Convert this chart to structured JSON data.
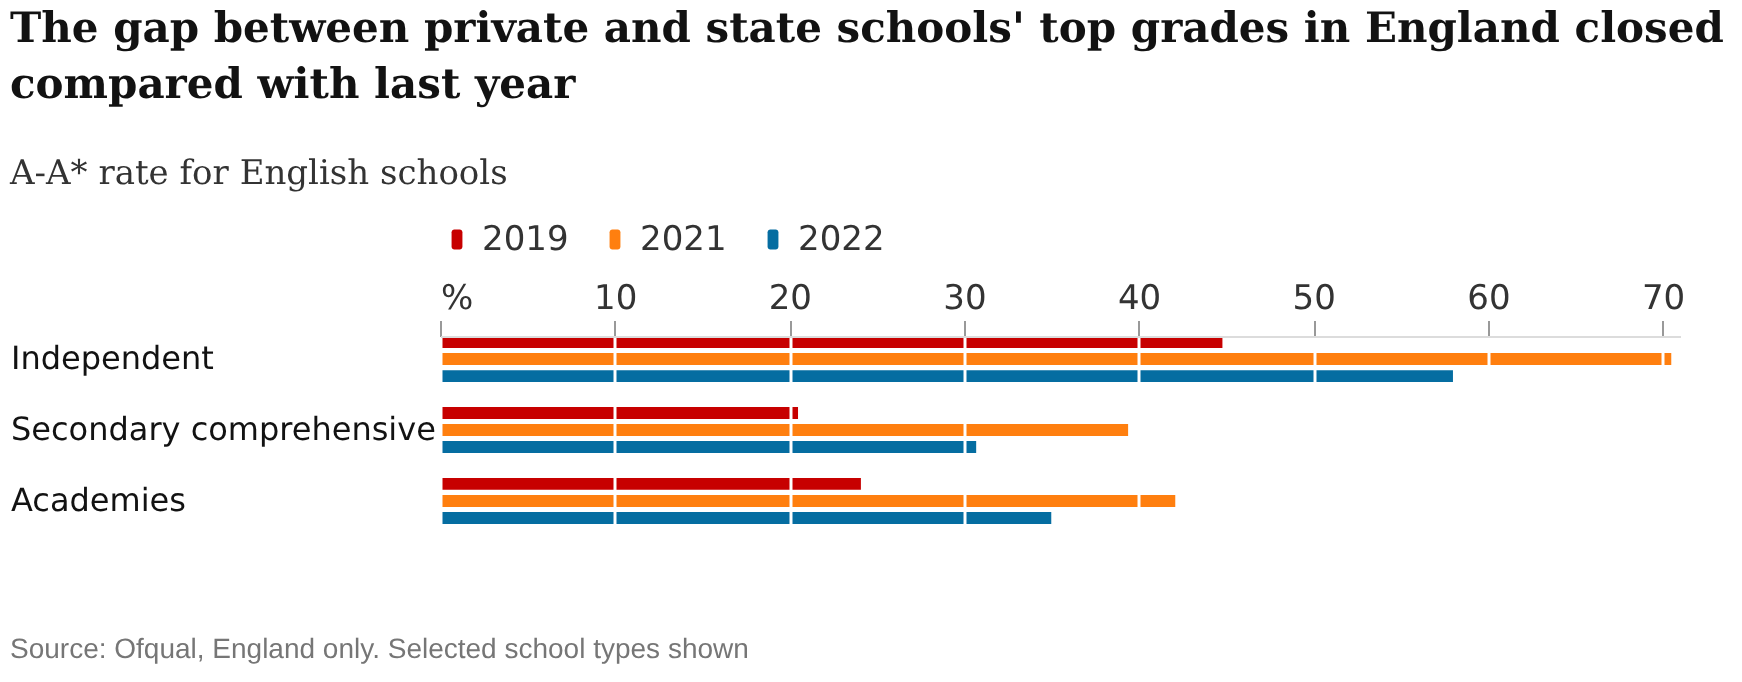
{
  "chart_data": {
    "type": "bar",
    "orientation": "horizontal",
    "title": "The gap between private and state schools' top grades in England closed compared with last year",
    "subtitle": "A-A* rate for English schools",
    "categories": [
      "Independent",
      "Secondary comprehensive",
      "Academies"
    ],
    "series": [
      {
        "name": "2019",
        "color": "#c70000",
        "values": [
          44.8,
          20.5,
          24.1
        ]
      },
      {
        "name": "2021",
        "color": "#ff7f0f",
        "values": [
          70.5,
          39.4,
          42.1
        ]
      },
      {
        "name": "2022",
        "color": "#056da1",
        "values": [
          58.0,
          30.7,
          35.0
        ]
      }
    ],
    "xlim": [
      0,
      71
    ],
    "xticks": [
      {
        "value": 0,
        "label": "%"
      },
      10,
      20,
      30,
      40,
      50,
      60,
      70
    ],
    "grid": "x",
    "legend": "top",
    "annotations": [
      "Source: Ofqual, England only. Selected school types shown"
    ]
  }
}
